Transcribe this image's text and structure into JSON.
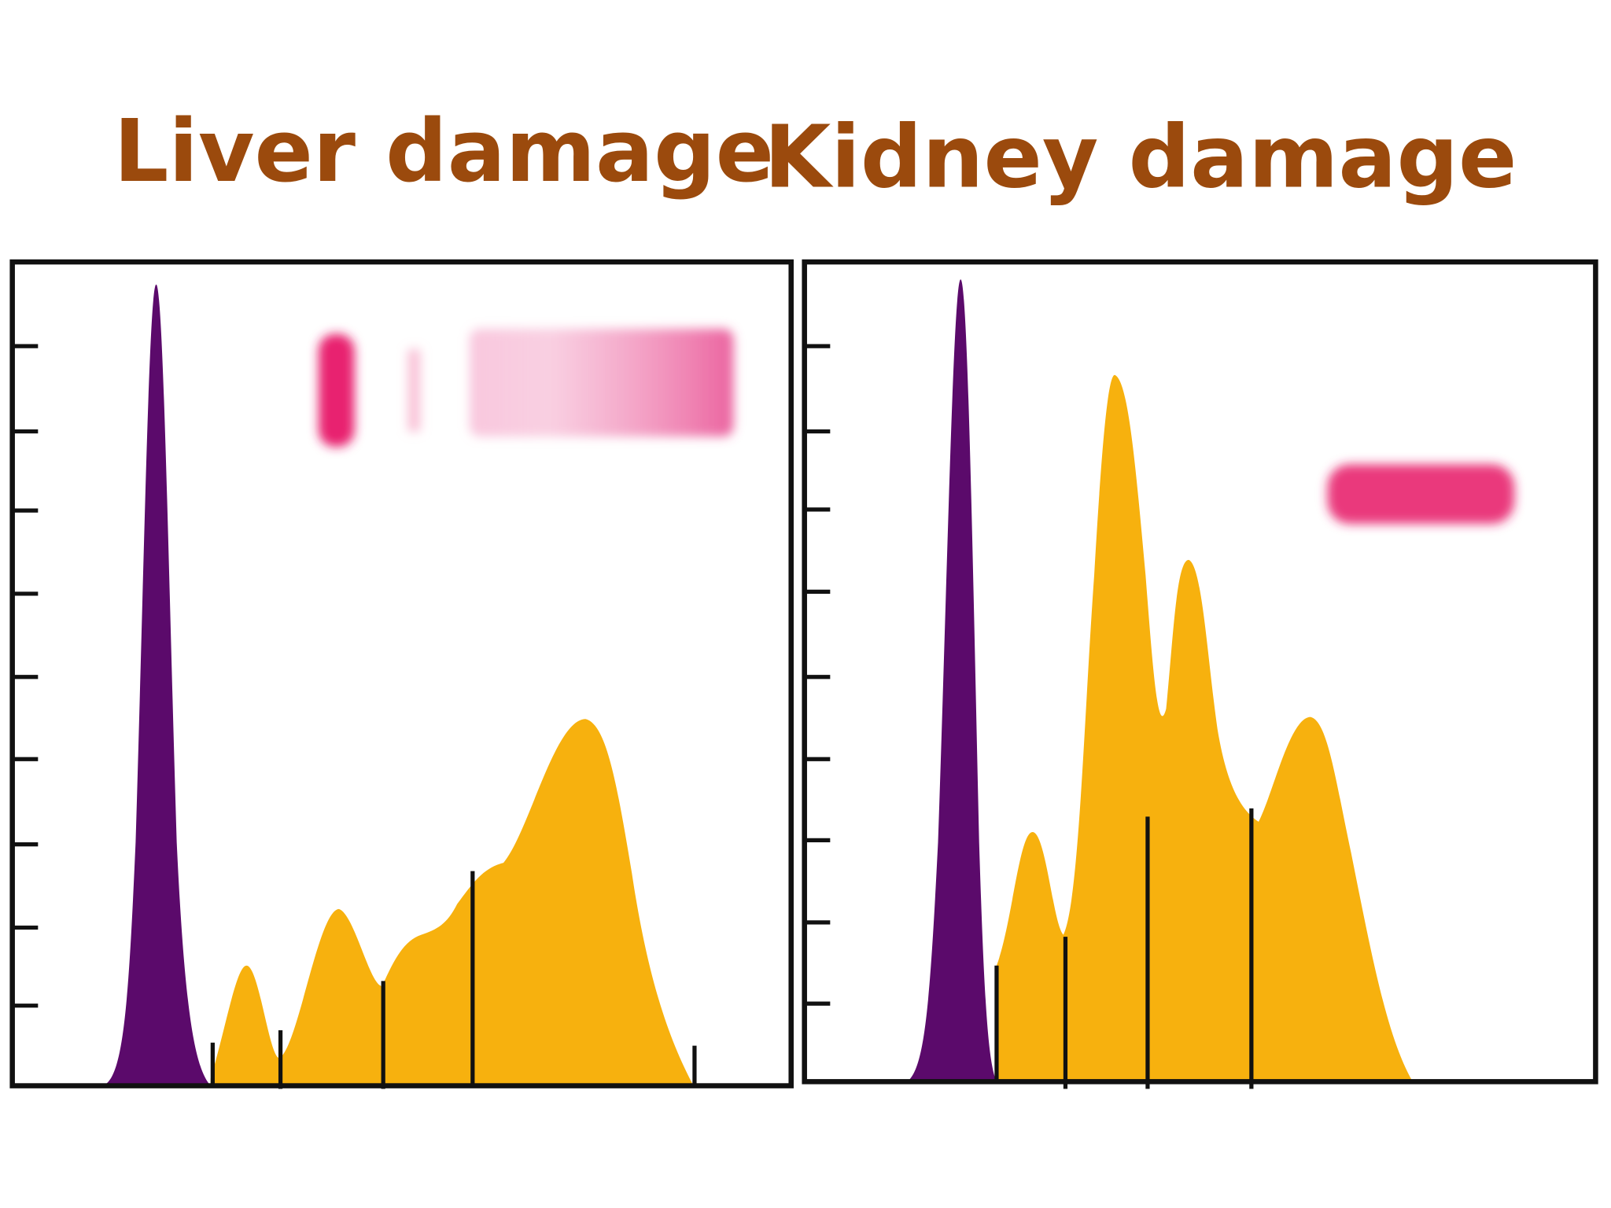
{
  "panels": [
    {
      "title": "Liver damage"
    },
    {
      "title": "Kidney damage"
    }
  ]
}
